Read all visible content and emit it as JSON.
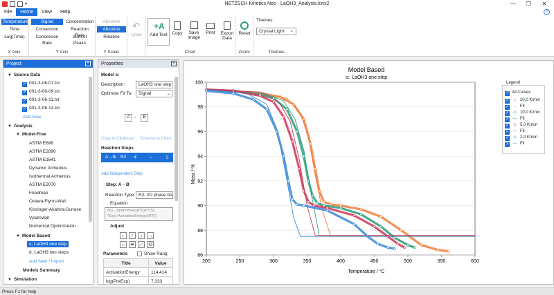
{
  "window": {
    "title": "NETZSCH Kinetics Neo - LaOH3_Analysis.kinx2",
    "min": "—",
    "restore": "❐",
    "close": "✕",
    "help": "?"
  },
  "tabs": [
    "File",
    "Home",
    "View",
    "Help"
  ],
  "ribbon": {
    "xaxis": {
      "label": "X Axis",
      "items": [
        "Temperature",
        "Time",
        "Log(Time)"
      ]
    },
    "yaxis": {
      "label": "Y Axis",
      "items": [
        "Signal",
        "Conversion",
        "Conversion Rate",
        "Concentration",
        "Reaction Rate",
        "Sum of Peaks"
      ]
    },
    "yscale": {
      "label": "Y Scale",
      "items": [
        "Absolute Raw",
        "Absolute",
        "Relative"
      ]
    },
    "undo": "Undo",
    "chart": {
      "label": "Chart",
      "add_text": "Add Text",
      "copy": "Copy",
      "save_image": "Save Image",
      "print": "Print",
      "export_data": "Export Data"
    },
    "zoom": {
      "label": "Zoom",
      "reset": "Reset"
    },
    "themes": {
      "label": "Themes",
      "title": "Themes",
      "selected": "Crystal Light"
    }
  },
  "project": {
    "title": "Project",
    "source_data": "Source Data",
    "files": [
      "001-3-06-07.txt",
      "001-3-06-09.txt",
      "001-3-06-11.txt",
      "001-3-06-13.txt"
    ],
    "add_new": "Add New",
    "analysis": "Analysis",
    "model_free": "Model-Free",
    "mf_methods": [
      "ASTM E698",
      "ASTM E2890",
      "ASTM E1641",
      "Dynamic Arrhenius",
      "Isothermal Arrhenius",
      "ASTM E2070",
      "Friedman",
      "Ozawa-Flynn-Wall",
      "Kissinger-Akahira-Sunose",
      "Vyazovkin",
      "Numerical Optimization"
    ],
    "model_based": "Model Based",
    "mb_items": [
      "s; LaOH3 one step",
      "d; LaOH3 two steps"
    ],
    "add_new_import": "Add New / Import",
    "models_summary": "Models Summary",
    "simulation": "Simulation"
  },
  "properties": {
    "title": "Properties",
    "model_label": "Model s:",
    "description_label": "Description:",
    "description_value": "LaOH3 one step",
    "optimize_label": "Optimize Fit To:",
    "optimize_value": "Signal",
    "scheme_a": "A",
    "scheme_b": "B",
    "copy_clipboard": "Copy to Clipboard",
    "scheme_to_chart": "Scheme to Chart",
    "reaction_steps": "Reaction Steps",
    "step_code": "A→B",
    "step_type": "R2",
    "add_independent": "Add Independent Step",
    "step_label": "Step: A→B",
    "reaction_type_label": "Reaction Type:",
    "reaction_type_value": "R2, 2D phase bou",
    "equation_label": "Equation",
    "equation_line1": "d(a→b)/dt=PreExp*2(a^0.5)",
    "equation_line2": "*Exp(-ActivationEnergy/(RT))",
    "adjust_label": "Adjust",
    "params_label": "Parameters",
    "show_range": "Show Rang",
    "table_headers": [
      "Title",
      "Value"
    ],
    "table_rows": [
      [
        "ActivationEnergy",
        "114,414"
      ],
      [
        "log(PreExp)",
        "7,333"
      ]
    ]
  },
  "chart_data": {
    "type": "line",
    "title": "Model Based",
    "subtitle": "s:; LaOH3 one step",
    "xlabel": "Temperature / °C",
    "ylabel": "Mass / %",
    "xlim": [
      200,
      600
    ],
    "ylim": [
      86,
      100
    ],
    "xticks": [
      "200",
      "250",
      "300",
      "350",
      "400",
      "450",
      "500",
      "550",
      "600"
    ],
    "yticks": [
      "86",
      "88",
      "90",
      "92",
      "94",
      "96",
      "98",
      "100"
    ],
    "series": [
      {
        "name": "20,0 K/min",
        "color": "#f07c3a",
        "marker": "diamond",
        "x": [
          200,
          240,
          280,
          310,
          330,
          345,
          355,
          362,
          368,
          375,
          385,
          400,
          430,
          460,
          490,
          520,
          545,
          560
        ],
        "y": [
          99.4,
          99.3,
          99.1,
          98.8,
          98.2,
          97.0,
          95.0,
          93.0,
          91.2,
          90.3,
          90.1,
          90.0,
          89.7,
          89.1,
          88.0,
          86.8,
          86.4,
          86.3
        ]
      },
      {
        "name": "Fit",
        "color": "#f07c3a",
        "x": [
          200,
          280,
          320,
          340,
          352,
          362,
          372,
          385,
          600
        ],
        "y": [
          99.4,
          99.2,
          98.7,
          97.5,
          95.5,
          92.5,
          89.8,
          87.5,
          87.5
        ]
      },
      {
        "name": "10,0 K/min",
        "color": "#2a9d7a",
        "marker": "diamond",
        "x": [
          200,
          240,
          280,
          300,
          320,
          335,
          345,
          352,
          358,
          365,
          375,
          400,
          430,
          460,
          480,
          500,
          510
        ],
        "y": [
          99.4,
          99.3,
          99.0,
          98.7,
          97.8,
          96.0,
          94.0,
          92.0,
          90.8,
          90.2,
          90.0,
          89.8,
          89.3,
          88.3,
          87.4,
          86.8,
          86.6
        ]
      },
      {
        "name": "Fit",
        "color": "#2a9d7a",
        "x": [
          200,
          280,
          315,
          332,
          345,
          356,
          368,
          600
        ],
        "y": [
          99.4,
          99.2,
          98.5,
          97.0,
          94.5,
          91.0,
          87.6,
          87.6
        ]
      },
      {
        "name": "5,0 K/min",
        "color": "#d0365a",
        "marker": "diamond",
        "x": [
          200,
          240,
          280,
          300,
          315,
          328,
          338,
          345,
          352,
          360,
          380,
          420,
          450,
          470,
          485,
          495
        ],
        "y": [
          99.4,
          99.3,
          98.9,
          98.4,
          97.2,
          95.2,
          93.0,
          91.2,
          90.3,
          90.0,
          89.8,
          89.2,
          88.3,
          87.5,
          86.9,
          86.6
        ]
      },
      {
        "name": "Fit",
        "color": "#d0365a",
        "x": [
          200,
          280,
          308,
          325,
          338,
          350,
          362,
          600
        ],
        "y": [
          99.4,
          99.2,
          98.4,
          96.8,
          93.8,
          90.0,
          87.6,
          87.6
        ]
      },
      {
        "name": "2,0 K/min",
        "color": "#3a88d8",
        "marker": "diamond",
        "x": [
          200,
          240,
          270,
          290,
          305,
          315,
          322,
          328,
          335,
          345,
          380,
          420,
          440,
          455,
          470,
          480
        ],
        "y": [
          99.3,
          99.1,
          98.6,
          97.8,
          96.0,
          94.0,
          92.0,
          90.5,
          90.1,
          90.0,
          89.6,
          88.5,
          87.5,
          86.9,
          86.6,
          86.5
        ]
      },
      {
        "name": "Fit",
        "color": "#3a88d8",
        "x": [
          200,
          260,
          290,
          305,
          318,
          330,
          340,
          600
        ],
        "y": [
          99.4,
          99.1,
          98.2,
          96.2,
          92.6,
          89.0,
          87.5,
          87.5
        ]
      }
    ],
    "legend": {
      "title": "Legend",
      "all": "All Curves",
      "placement": "right"
    }
  },
  "status": "Press F1 for help"
}
